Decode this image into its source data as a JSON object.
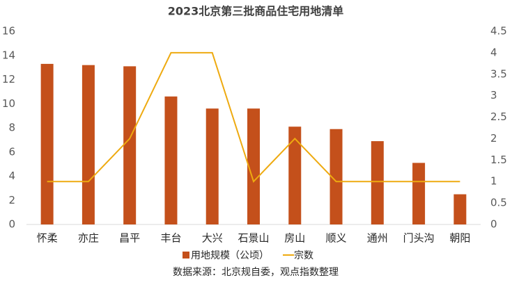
{
  "chart_data": {
    "type": "bar",
    "title": "2023北京第三批商品住宅用地清单",
    "source": "数据来源：北京规自委，观点指数整理",
    "categories": [
      "怀柔",
      "亦庄",
      "昌平",
      "丰台",
      "大兴",
      "石景山",
      "房山",
      "顺义",
      "通州",
      "门头沟",
      "朝阳"
    ],
    "series": [
      {
        "name": "用地规模（公顷）",
        "type": "bar",
        "color": "#c4501b",
        "values": [
          13.3,
          13.2,
          13.1,
          10.6,
          9.6,
          9.6,
          8.1,
          7.9,
          6.9,
          5.1,
          2.5
        ]
      },
      {
        "name": "宗数",
        "type": "line",
        "axis": "y2",
        "color": "#eeaa10",
        "values": [
          1,
          1,
          2,
          4,
          4,
          1,
          2,
          1,
          1,
          1,
          1
        ]
      }
    ],
    "ylim": [
      0,
      16
    ],
    "yticks": [
      0,
      2,
      4,
      6,
      8,
      10,
      12,
      14,
      16
    ],
    "y2lim": [
      0,
      4.5
    ],
    "y2ticks": [
      0,
      0.5,
      1,
      1.5,
      2,
      2.5,
      3,
      3.5,
      4,
      4.5
    ],
    "grid": false
  }
}
